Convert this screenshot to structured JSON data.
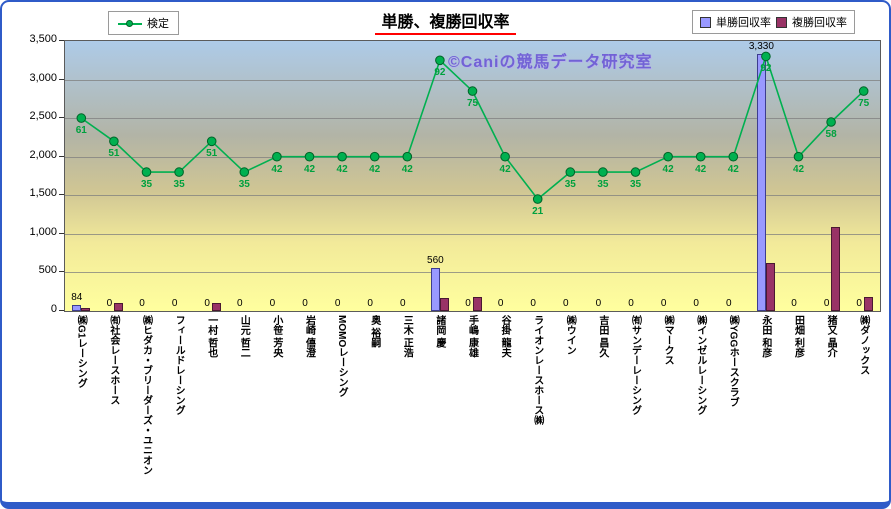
{
  "title": "単勝、複勝回収率",
  "watermark": "©Caniの競馬データ研究室",
  "legend": {
    "line_label": "検定",
    "tansho_label": "単勝回収率",
    "fukusho_label": "複勝回収率"
  },
  "colors": {
    "line": "#00b050",
    "line_dark": "#006428",
    "line_label": "#00a13e",
    "tansho": "#9999ff",
    "tansho_border": "#3d3d8f",
    "fukusho": "#993366",
    "fukusho_border": "#4a1931",
    "watermark": "#7262d6",
    "title_underline": "#ff0000",
    "frame_border": "#2f5bc8"
  },
  "chart_data": {
    "type": "bar+line",
    "title": "単勝、複勝回収率",
    "categories": [
      "㈱G1レーシング",
      "㈲社会レースホース",
      "㈱ヒダカ・ブリーダーズ・ユニオン",
      "フィールドレーシング",
      "一村 哲也",
      "山元 哲二",
      "小笹 芳央",
      "岩崎 僖澄",
      "MOMOレーシング",
      "奥 裕嗣",
      "三木 正浩",
      "諸岡 慶",
      "手嶋 康雄",
      "谷掛 龍夫",
      "ライオンレースホース㈱",
      "㈱ウイン",
      "吉田 昌久",
      "㈲サンデーレーシング",
      "㈱マークス",
      "㈱インゼルレーシング",
      "㈱YGGホースクラブ",
      "永田 和彦",
      "田畑 利彦",
      "猪又 晶介",
      "㈱ダノックス"
    ],
    "series": [
      {
        "name": "単勝回収率",
        "type": "bar",
        "values": [
          84,
          0,
          0,
          0,
          0,
          0,
          0,
          0,
          0,
          0,
          0,
          560,
          0,
          0,
          0,
          0,
          0,
          0,
          0,
          0,
          0,
          3330,
          0,
          0,
          0
        ],
        "data_labels": [
          "84",
          "0",
          "0",
          "0",
          "0",
          "0",
          "0",
          "0",
          "0",
          "0",
          "0",
          "560",
          "0",
          "0",
          "0",
          "0",
          "0",
          "0",
          "0",
          "0",
          "0",
          "3,330",
          "0",
          "0",
          "0"
        ]
      },
      {
        "name": "複勝回収率",
        "type": "bar",
        "values": [
          40,
          100,
          0,
          0,
          100,
          0,
          0,
          0,
          0,
          0,
          0,
          170,
          180,
          0,
          0,
          0,
          0,
          0,
          0,
          0,
          0,
          620,
          0,
          1090,
          180
        ]
      },
      {
        "name": "検定",
        "type": "line",
        "plotted_values": [
          2500,
          2200,
          1800,
          1800,
          2200,
          1800,
          2000,
          2000,
          2000,
          2000,
          2000,
          3250,
          2850,
          2000,
          1450,
          1800,
          1800,
          1800,
          2000,
          2000,
          2000,
          3300,
          2000,
          2450,
          2850
        ],
        "data_labels": [
          "61",
          "51",
          "35",
          "35",
          "51",
          "35",
          "42",
          "42",
          "42",
          "42",
          "42",
          "92",
          "75",
          "42",
          "21",
          "35",
          "35",
          "35",
          "42",
          "42",
          "42",
          "92",
          "42",
          "58",
          "75"
        ]
      }
    ],
    "ylim": [
      0,
      3500
    ],
    "ytick_step": 500,
    "yticks": [
      "0",
      "500",
      "1,000",
      "1,500",
      "2,000",
      "2,500",
      "3,000",
      "3,500"
    ],
    "grid": true,
    "legend_position": "top"
  }
}
